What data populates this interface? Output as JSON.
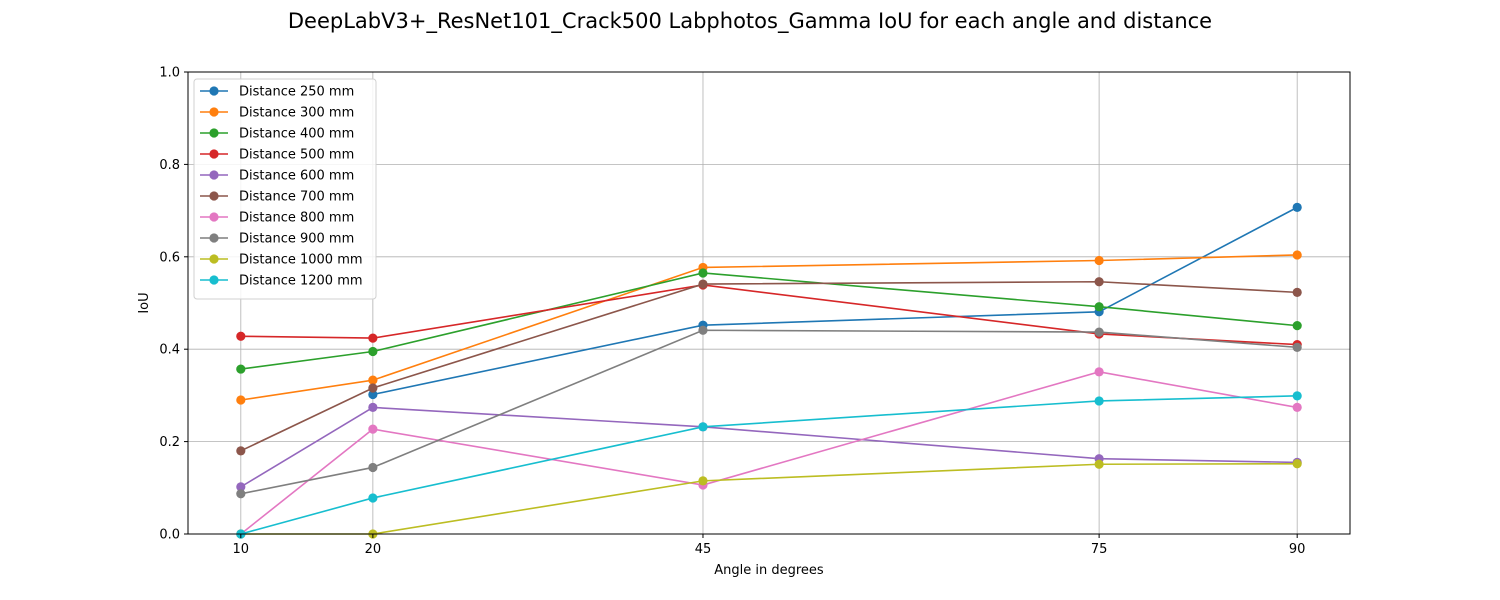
{
  "chart_data": {
    "type": "line",
    "title": "DeepLabV3+_ResNet101_Crack500 Labphotos_Gamma IoU for each angle and distance",
    "xlabel": "Angle in degrees",
    "ylabel": "IoU",
    "x": [
      10,
      20,
      45,
      75,
      90
    ],
    "x_tick_labels": [
      "10",
      "20",
      "45",
      "75",
      "90"
    ],
    "xlim": [
      6,
      94
    ],
    "ylim": [
      0.0,
      1.0
    ],
    "y_ticks": [
      0.0,
      0.2,
      0.4,
      0.6,
      0.8,
      1.0
    ],
    "y_tick_labels": [
      "0.0",
      "0.2",
      "0.4",
      "0.6",
      "0.8",
      "1.0"
    ],
    "grid": true,
    "legend_position": "top-left",
    "series": [
      {
        "name": "Distance 250 mm",
        "color": "#1f77b4",
        "values": [
          null,
          0.302,
          0.452,
          0.481,
          0.707
        ]
      },
      {
        "name": "Distance 300 mm",
        "color": "#ff7f0e",
        "values": [
          0.29,
          0.333,
          0.577,
          0.592,
          0.604
        ]
      },
      {
        "name": "Distance 400 mm",
        "color": "#2ca02c",
        "values": [
          0.357,
          0.395,
          0.565,
          0.492,
          0.451
        ]
      },
      {
        "name": "Distance 500 mm",
        "color": "#d62728",
        "values": [
          0.428,
          0.424,
          0.539,
          0.433,
          0.41
        ]
      },
      {
        "name": "Distance 600 mm",
        "color": "#9467bd",
        "values": [
          0.102,
          0.274,
          0.232,
          0.163,
          0.155
        ]
      },
      {
        "name": "Distance 700 mm",
        "color": "#8c564b",
        "values": [
          0.18,
          0.316,
          0.541,
          0.546,
          0.523
        ]
      },
      {
        "name": "Distance 800 mm",
        "color": "#e377c2",
        "values": [
          0.0,
          0.227,
          0.106,
          0.351,
          0.274
        ]
      },
      {
        "name": "Distance 900 mm",
        "color": "#7f7f7f",
        "values": [
          0.087,
          0.144,
          0.441,
          0.437,
          0.404
        ]
      },
      {
        "name": "Distance 1000 mm",
        "color": "#bcbd22",
        "values": [
          0.0,
          0.0,
          0.115,
          0.151,
          0.152
        ]
      },
      {
        "name": "Distance 1200 mm",
        "color": "#17becf",
        "values": [
          0.0,
          0.078,
          0.232,
          0.288,
          0.299
        ]
      }
    ]
  }
}
